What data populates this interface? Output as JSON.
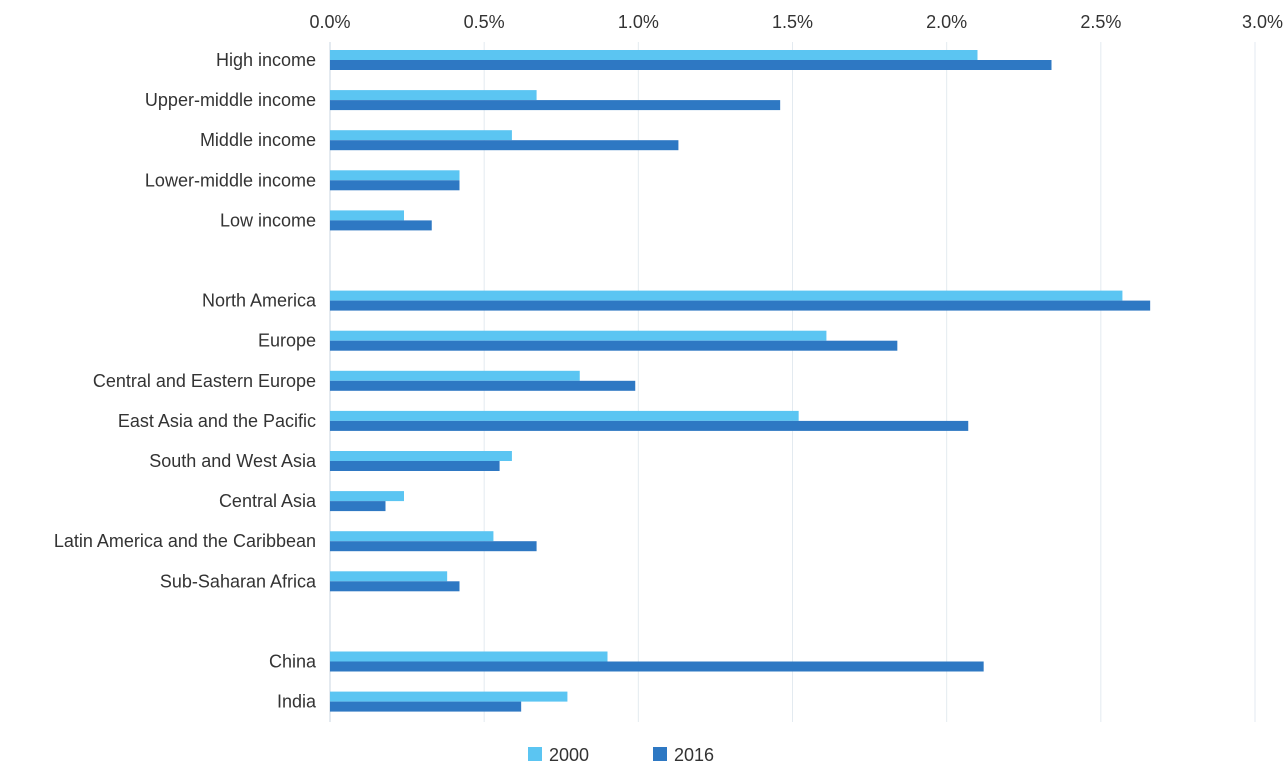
{
  "chart_data": {
    "type": "bar",
    "orientation": "horizontal",
    "title": "",
    "xlabel": "",
    "ylabel": "",
    "xlim": [
      0,
      3.0
    ],
    "x_ticks": [
      "0.0%",
      "0.5%",
      "1.0%",
      "1.5%",
      "2.0%",
      "2.5%",
      "3.0%"
    ],
    "x_axis_position": "top",
    "grid": true,
    "legend_position": "bottom",
    "categories": [
      "High income",
      "Upper-middle income",
      "Middle income",
      "Lower-middle income",
      "Low income",
      "",
      "North America",
      "Europe",
      "Central and Eastern Europe",
      "East Asia and the Pacific",
      "South and West Asia",
      "Central Asia",
      "Latin America and the Caribbean",
      "Sub-Saharan Africa",
      "",
      "China",
      "India"
    ],
    "series": [
      {
        "name": "2000",
        "color": "#5bc5f2",
        "values": [
          2.1,
          0.67,
          0.59,
          0.42,
          0.24,
          null,
          2.57,
          1.61,
          0.81,
          1.52,
          0.59,
          0.24,
          0.53,
          0.38,
          null,
          0.9,
          0.77
        ]
      },
      {
        "name": "2016",
        "color": "#2e78c3",
        "values": [
          2.34,
          1.46,
          1.13,
          0.42,
          0.33,
          null,
          2.66,
          1.84,
          0.99,
          2.07,
          0.55,
          0.18,
          0.67,
          0.42,
          null,
          2.12,
          0.62
        ]
      }
    ]
  }
}
